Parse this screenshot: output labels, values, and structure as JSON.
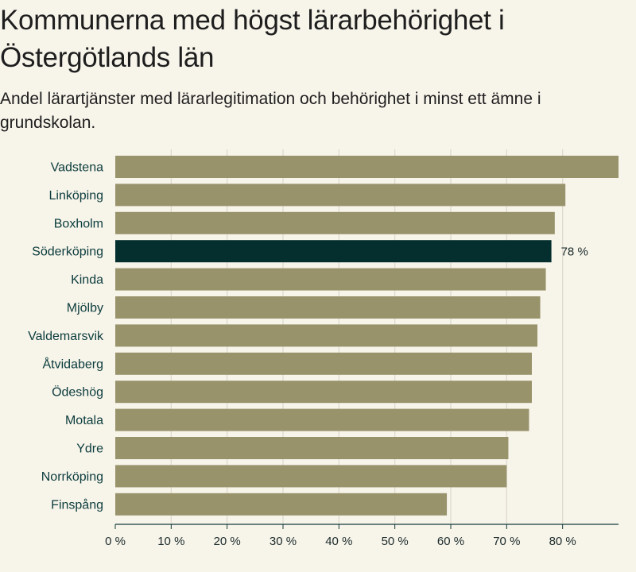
{
  "header": {
    "title": "Kommunerna med högst lärarbehörighet i Östergötlands län",
    "subtitle": "Andel lärartjänster med lärarlegitimation och behörighet i minst ett ämne i grundskolan."
  },
  "colors": {
    "bar": "#98936b",
    "highlight": "#052f2e",
    "grid": "#dcd8cc",
    "axis": "#143c3a"
  },
  "chart_data": {
    "type": "bar",
    "orientation": "horizontal",
    "title": "Kommunerna med högst lärarbehörighet i Östergötlands län",
    "subtitle": "Andel lärartjänster med lärarlegitimation och behörighet i minst ett ämne i grundskolan.",
    "categories": [
      "Vadstena",
      "Linköping",
      "Boxholm",
      "Söderköping",
      "Kinda",
      "Mjölby",
      "Valdemarsvik",
      "Åtvidaberg",
      "Ödeshög",
      "Motala",
      "Ydre",
      "Norrköping",
      "Finspång"
    ],
    "values": [
      90,
      80.5,
      78.6,
      78,
      77,
      76,
      75.5,
      74.5,
      74.5,
      74,
      70.3,
      70,
      59.3
    ],
    "highlight": "Söderköping",
    "data_labels": [
      {
        "category": "Söderköping",
        "text": "78 %"
      }
    ],
    "x_ticks": [
      "0 %",
      "10 %",
      "20 %",
      "30 %",
      "40 %",
      "50 %",
      "60 %",
      "70 %",
      "80 %"
    ],
    "xlim": [
      0,
      90
    ],
    "grid": true,
    "xlabel": "",
    "ylabel": ""
  }
}
